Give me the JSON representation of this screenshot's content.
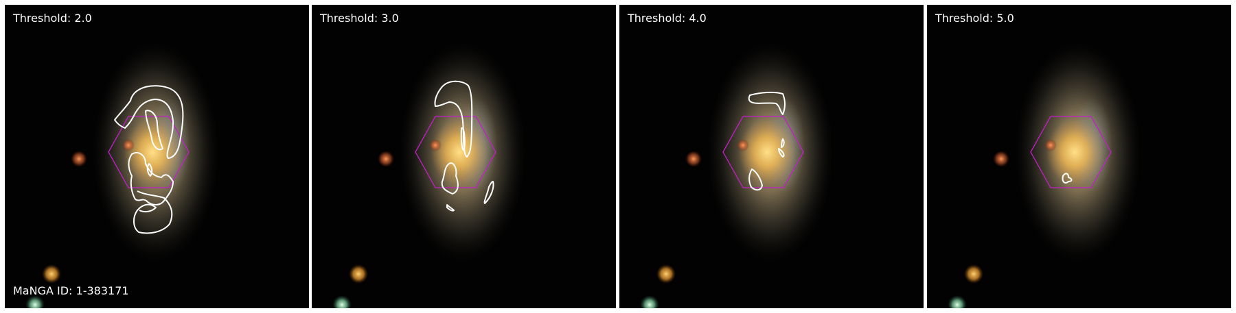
{
  "panels": [
    {
      "threshold_label": "Threshold: 2.0"
    },
    {
      "threshold_label": "Threshold: 3.0"
    },
    {
      "threshold_label": "Threshold: 4.0"
    },
    {
      "threshold_label": "Threshold: 5.0"
    }
  ],
  "manga_id_label": "MaNGA ID: 1-383171",
  "colors": {
    "background": "#020202",
    "hexagon": "#c21ec8",
    "contour": "#ffffff",
    "galaxy_core": "#f2c25a",
    "galaxy_disk": "#b39a6a"
  }
}
